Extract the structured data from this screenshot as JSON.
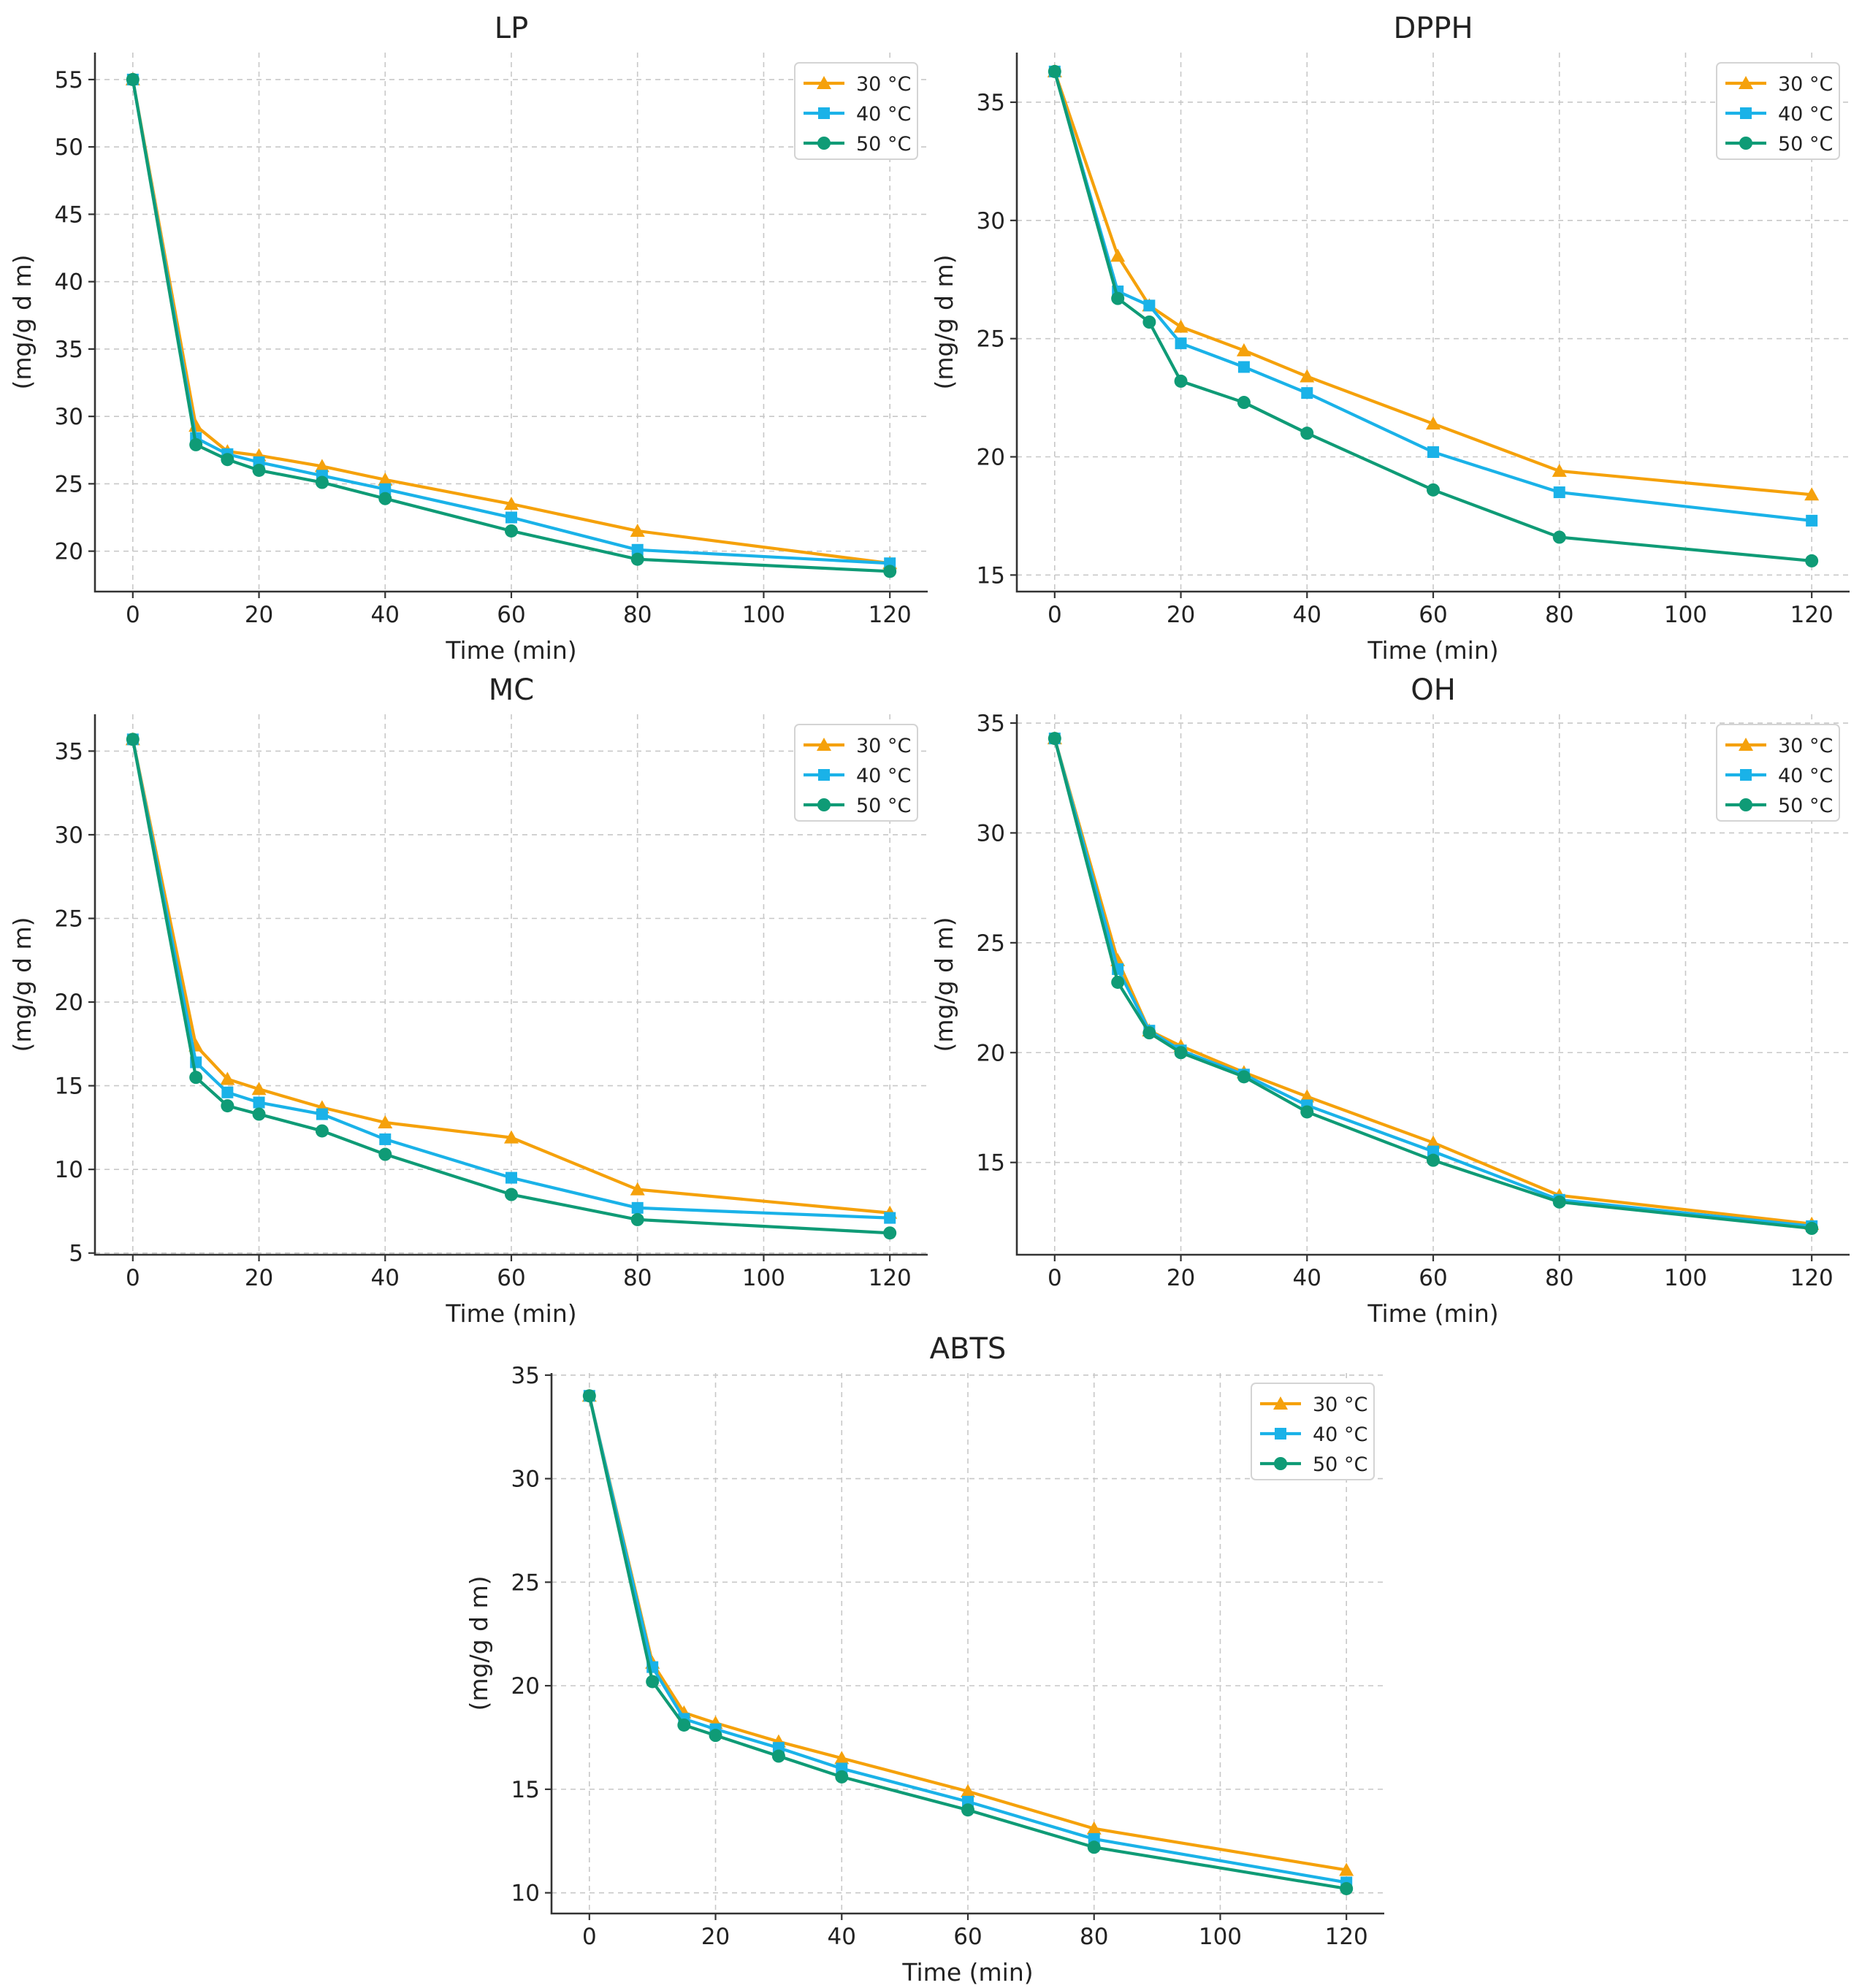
{
  "chart_data": [
    {
      "type": "line",
      "title": "LP",
      "xlabel": "Time (min)",
      "ylabel": "(mg/g d m)",
      "grid": true,
      "legend": "top-right",
      "xlim": [
        -6,
        126
      ],
      "ylim": [
        17,
        57
      ],
      "xticks": [
        0,
        20,
        40,
        60,
        80,
        100,
        120
      ],
      "yticks": [
        20,
        25,
        30,
        35,
        40,
        45,
        50,
        55
      ],
      "x": [
        0,
        10,
        15,
        20,
        30,
        40,
        60,
        80,
        120
      ],
      "series": [
        {
          "name": "30 °C",
          "color": "#f5a10b",
          "marker": "triangle",
          "values": [
            55,
            29.3,
            27.4,
            27.1,
            26.3,
            25.3,
            23.5,
            21.5,
            19.1
          ]
        },
        {
          "name": "40 °C",
          "color": "#1ab2e8",
          "marker": "square",
          "values": [
            55,
            28.4,
            27.2,
            26.6,
            25.6,
            24.6,
            22.5,
            20.1,
            19.1
          ]
        },
        {
          "name": "50 °C",
          "color": "#0f9b76",
          "marker": "circle",
          "values": [
            55,
            27.9,
            26.8,
            26.0,
            25.1,
            23.9,
            21.5,
            19.4,
            18.5
          ]
        }
      ]
    },
    {
      "type": "line",
      "title": "DPPH",
      "xlabel": "Time (min)",
      "ylabel": "(mg/g d m)",
      "grid": true,
      "legend": "top-right",
      "xlim": [
        -6,
        126
      ],
      "ylim": [
        14.3,
        37.1
      ],
      "xticks": [
        0,
        20,
        40,
        60,
        80,
        100,
        120
      ],
      "yticks": [
        15,
        20,
        25,
        30,
        35
      ],
      "x": [
        0,
        10,
        15,
        20,
        30,
        40,
        60,
        80,
        120
      ],
      "series": [
        {
          "name": "30 °C",
          "color": "#f5a10b",
          "marker": "triangle",
          "values": [
            36.3,
            28.5,
            26.4,
            25.5,
            24.5,
            23.4,
            21.4,
            19.4,
            18.4
          ]
        },
        {
          "name": "40 °C",
          "color": "#1ab2e8",
          "marker": "square",
          "values": [
            36.3,
            27.0,
            26.4,
            24.8,
            23.8,
            22.7,
            20.2,
            18.5,
            17.3
          ]
        },
        {
          "name": "50 °C",
          "color": "#0f9b76",
          "marker": "circle",
          "values": [
            36.3,
            26.7,
            25.7,
            23.2,
            22.3,
            21.0,
            18.6,
            16.6,
            15.6
          ]
        }
      ]
    },
    {
      "type": "line",
      "title": "MC",
      "xlabel": "Time (min)",
      "ylabel": "(mg/g d m)",
      "grid": true,
      "legend": "top-right",
      "xlim": [
        -6,
        126
      ],
      "ylim": [
        4.9,
        37.2
      ],
      "xticks": [
        0,
        20,
        40,
        60,
        80,
        100,
        120
      ],
      "yticks": [
        5,
        10,
        15,
        20,
        25,
        30,
        35
      ],
      "x": [
        0,
        10,
        15,
        20,
        30,
        40,
        60,
        80,
        120
      ],
      "series": [
        {
          "name": "30 °C",
          "color": "#f5a10b",
          "marker": "triangle",
          "values": [
            35.7,
            17.4,
            15.4,
            14.8,
            13.7,
            12.8,
            11.9,
            8.8,
            7.4
          ]
        },
        {
          "name": "40 °C",
          "color": "#1ab2e8",
          "marker": "square",
          "values": [
            35.7,
            16.4,
            14.6,
            14.0,
            13.3,
            11.8,
            9.5,
            7.7,
            7.1
          ]
        },
        {
          "name": "50 °C",
          "color": "#0f9b76",
          "marker": "circle",
          "values": [
            35.7,
            15.5,
            13.8,
            13.3,
            12.3,
            10.9,
            8.5,
            7.0,
            6.2
          ]
        }
      ]
    },
    {
      "type": "line",
      "title": "OH",
      "xlabel": "Time (min)",
      "ylabel": "(mg/g d m)",
      "grid": true,
      "legend": "top-right",
      "xlim": [
        -6,
        126
      ],
      "ylim": [
        10.8,
        35.4
      ],
      "xticks": [
        0,
        20,
        40,
        60,
        80,
        100,
        120
      ],
      "yticks": [
        15,
        20,
        25,
        30,
        35
      ],
      "x": [
        0,
        10,
        15,
        20,
        30,
        40,
        60,
        80,
        120
      ],
      "series": [
        {
          "name": "30 °C",
          "color": "#f5a10b",
          "marker": "triangle",
          "values": [
            34.3,
            24.2,
            21.0,
            20.3,
            19.1,
            18.0,
            15.9,
            13.5,
            12.2
          ]
        },
        {
          "name": "40 °C",
          "color": "#1ab2e8",
          "marker": "square",
          "values": [
            34.3,
            23.8,
            21.0,
            20.1,
            19.0,
            17.6,
            15.5,
            13.3,
            12.1
          ]
        },
        {
          "name": "50 °C",
          "color": "#0f9b76",
          "marker": "circle",
          "values": [
            34.3,
            23.2,
            20.9,
            20.0,
            18.9,
            17.3,
            15.1,
            13.2,
            12.0
          ]
        }
      ]
    },
    {
      "type": "line",
      "title": "ABTS",
      "xlabel": "Time (min)",
      "ylabel": "(mg/g d m)",
      "grid": true,
      "legend": "top-right",
      "xlim": [
        -6,
        126
      ],
      "ylim": [
        9.0,
        35.1
      ],
      "xticks": [
        0,
        20,
        40,
        60,
        80,
        100,
        120
      ],
      "yticks": [
        10,
        15,
        20,
        25,
        30,
        35
      ],
      "x": [
        0,
        10,
        15,
        20,
        30,
        40,
        60,
        80,
        120
      ],
      "series": [
        {
          "name": "30 °C",
          "color": "#f5a10b",
          "marker": "triangle",
          "values": [
            34.0,
            21.1,
            18.7,
            18.2,
            17.3,
            16.5,
            14.9,
            13.1,
            11.1
          ]
        },
        {
          "name": "40 °C",
          "color": "#1ab2e8",
          "marker": "square",
          "values": [
            34.0,
            20.9,
            18.4,
            17.9,
            17.0,
            16.0,
            14.4,
            12.6,
            10.5
          ]
        },
        {
          "name": "50 °C",
          "color": "#0f9b76",
          "marker": "circle",
          "values": [
            34.0,
            20.2,
            18.1,
            17.6,
            16.6,
            15.6,
            14.0,
            12.2,
            10.2
          ]
        }
      ]
    }
  ]
}
